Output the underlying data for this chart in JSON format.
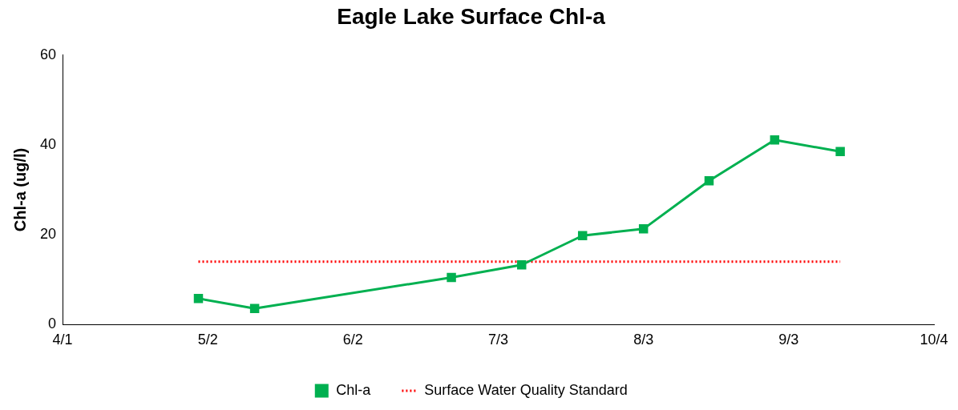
{
  "chart_data": {
    "type": "line",
    "title": "Eagle Lake Surface Chl-a",
    "ylabel": "Chl-a (ug/l)",
    "xlim": [
      "--04-01",
      "--10-04"
    ],
    "xticks": [
      {
        "value": "--04-01",
        "label": "4/1"
      },
      {
        "value": "--05-02",
        "label": "5/2"
      },
      {
        "value": "--06-02",
        "label": "6/2"
      },
      {
        "value": "--07-03",
        "label": "7/3"
      },
      {
        "value": "--08-03",
        "label": "8/3"
      },
      {
        "value": "--09-03",
        "label": "9/3"
      },
      {
        "value": "--10-04",
        "label": "10/4"
      }
    ],
    "ylim": [
      0,
      60
    ],
    "yticks": [
      0,
      20,
      40,
      60
    ],
    "grid": false,
    "legend": "bottom",
    "series": [
      {
        "name": "Chl-a",
        "color": "#00b050",
        "marker": "square",
        "line_style": "solid",
        "x": [
          "--04-30",
          "--05-12",
          "--06-23",
          "--07-08",
          "--07-21",
          "--08-03",
          "--08-17",
          "--08-31",
          "--09-14"
        ],
        "values": [
          5.8,
          3.6,
          10.5,
          13.3,
          19.8,
          21.3,
          32,
          41.1,
          38.5
        ]
      },
      {
        "name": "Surface Water Quality Standard",
        "color": "#ff0000",
        "marker": "none",
        "line_style": "dotted",
        "x": [
          "--04-30",
          "--09-14"
        ],
        "values": [
          14,
          14
        ]
      }
    ]
  }
}
